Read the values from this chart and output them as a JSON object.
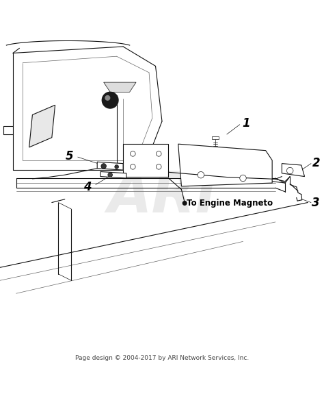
{
  "background_color": "#ffffff",
  "footer_text": "Page design © 2004-2017 by ARI Network Services, Inc.",
  "footer_fontsize": 6.5,
  "footer_color": "#444444",
  "watermark_text": "ARI",
  "watermark_color": "#bbbbbb",
  "watermark_fontsize": 60,
  "watermark_alpha": 0.3,
  "label_color": "#000000",
  "label_bold_fontsize": 12,
  "engine_magneto_label": "To Engine Magneto",
  "engine_magneto_fontsize": 8.5,
  "line_color": "#111111",
  "mid_color": "#666666"
}
